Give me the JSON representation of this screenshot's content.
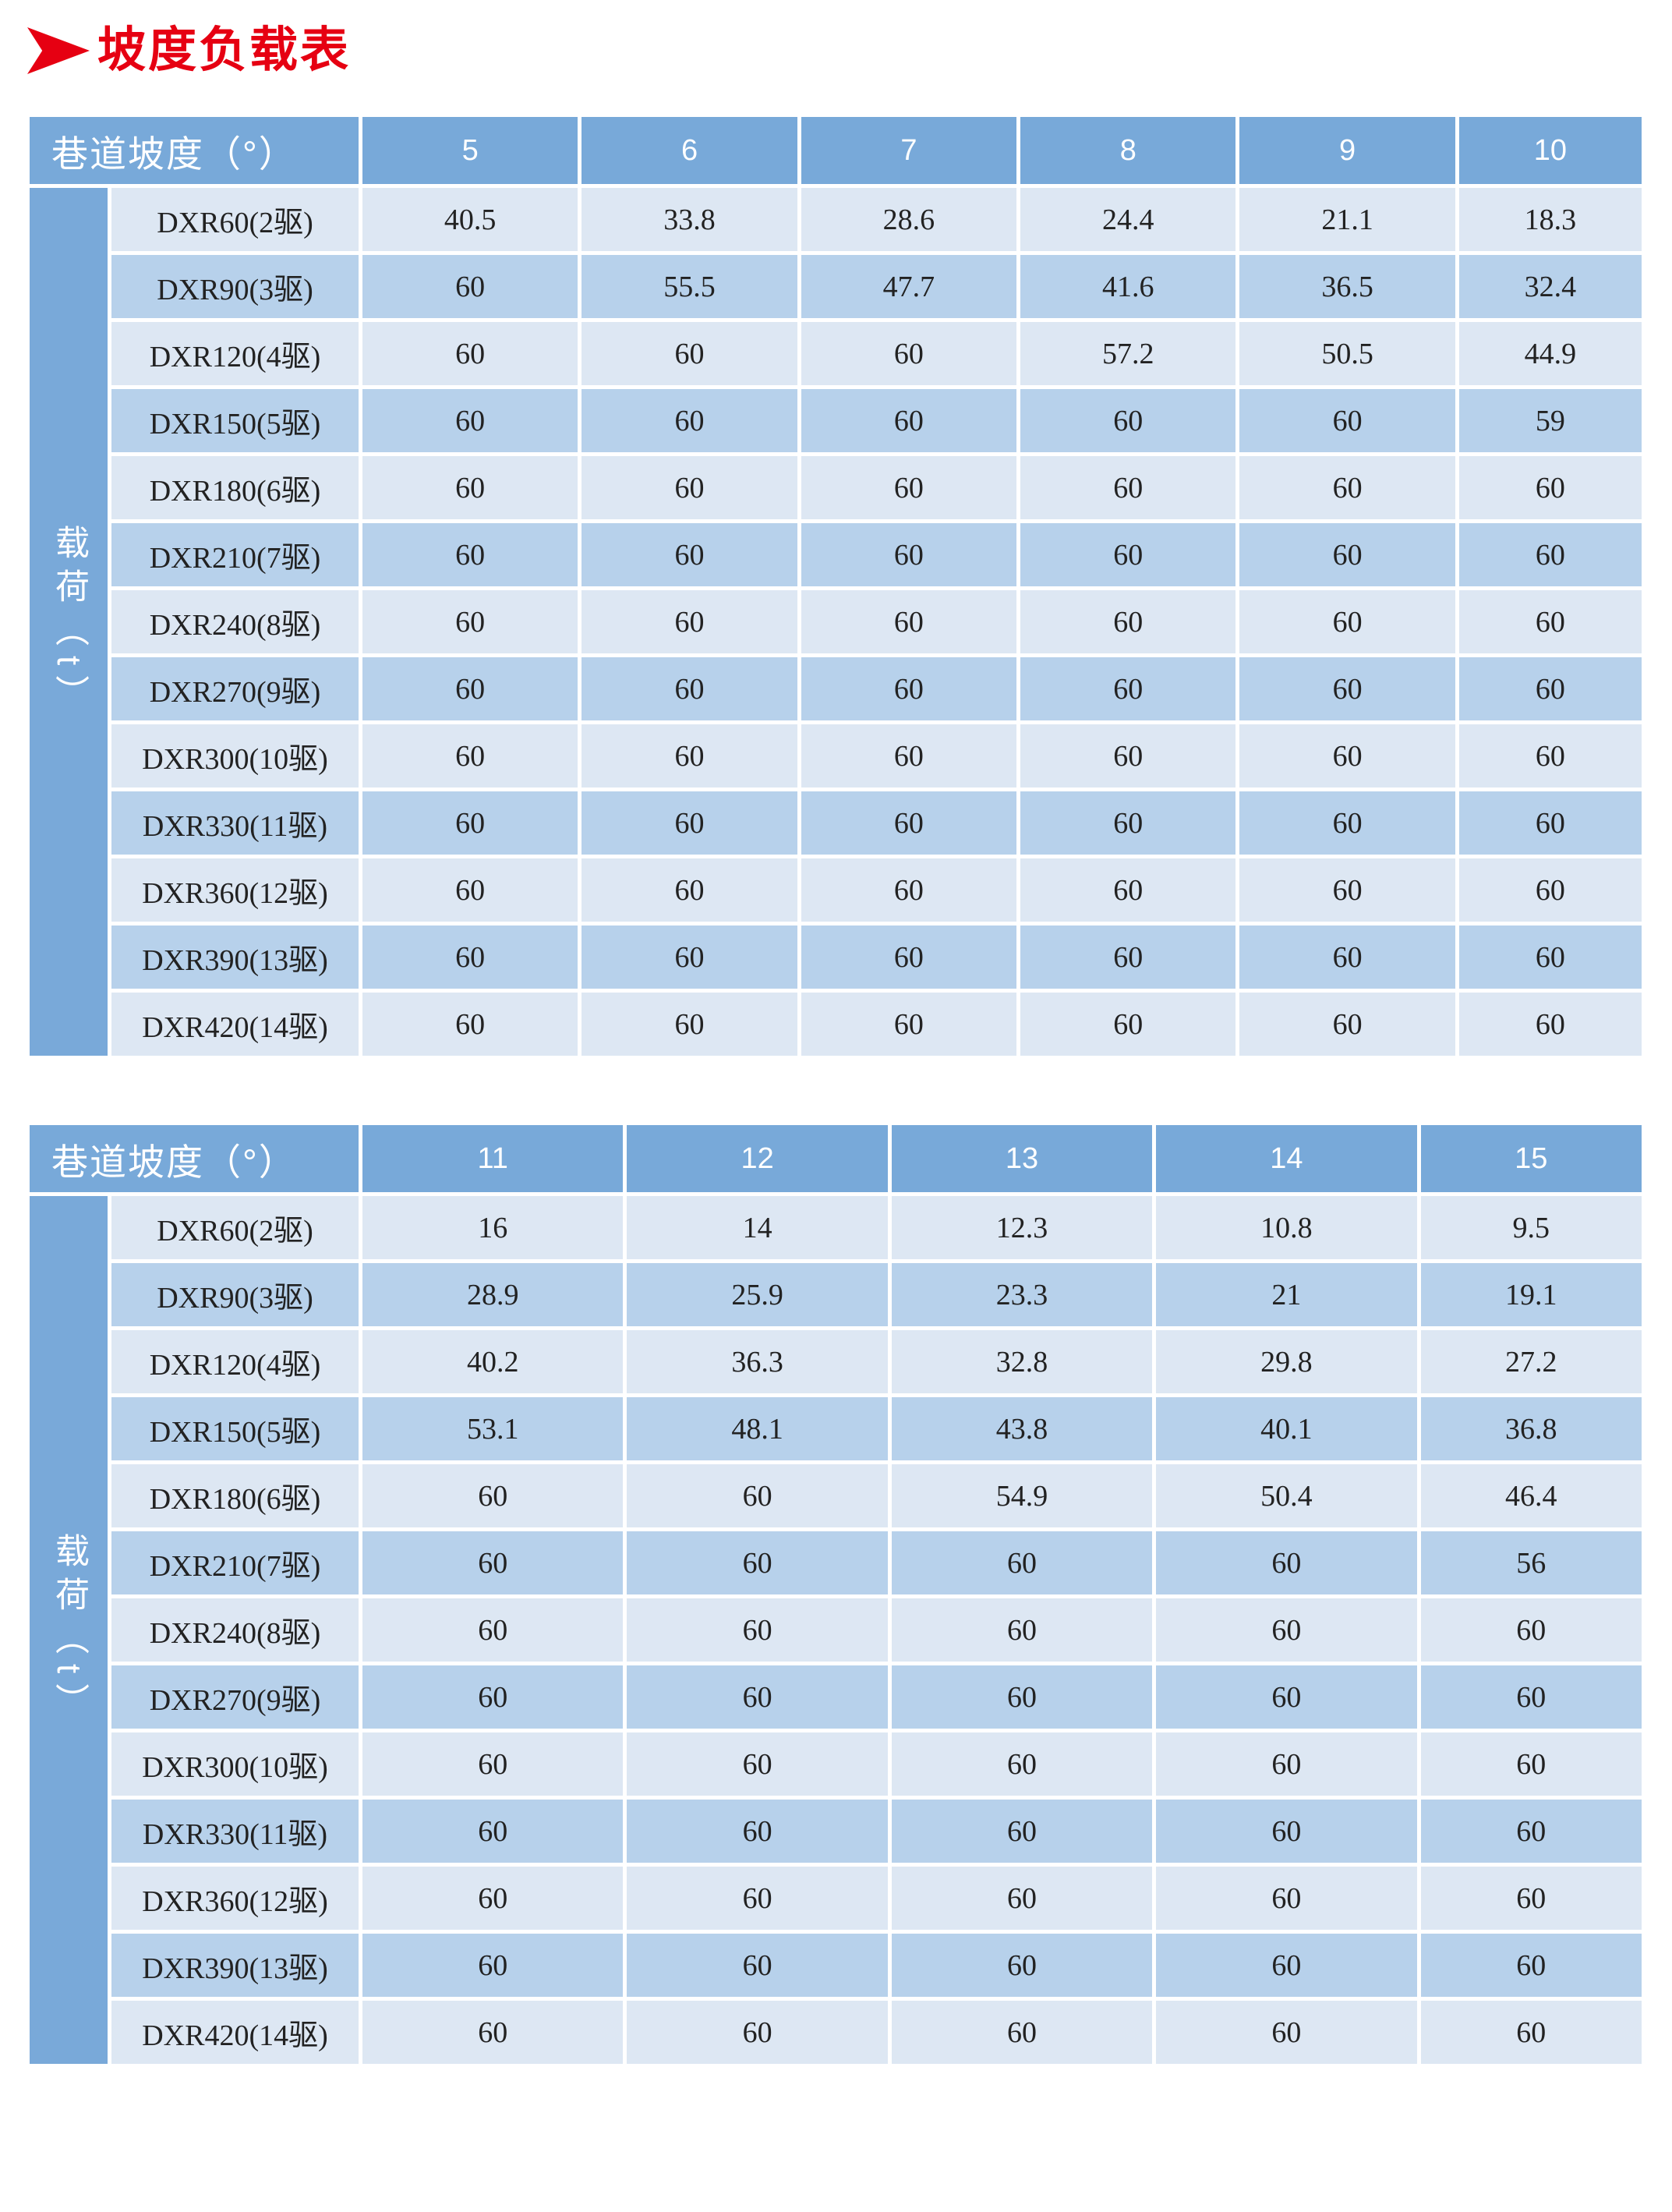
{
  "page": {
    "title": "坡度负载表"
  },
  "colors": {
    "accent_red": "#e60012",
    "header_blue": "#78a9d9",
    "band_blue": "#79a9d9",
    "row_light": "#dde7f3",
    "row_medium": "#b7d1eb",
    "cell_text": "#222222",
    "header_text": "#ffffff"
  },
  "icons": {
    "title_arrow": "red-arrowhead-right"
  },
  "tables": [
    {
      "corner_label": "巷道坡度（°）",
      "side_label": "载荷（t）",
      "columns": [
        "5",
        "6",
        "7",
        "8",
        "9",
        "10"
      ],
      "rows": [
        {
          "label": "DXR60(2驱)",
          "values": [
            "40.5",
            "33.8",
            "28.6",
            "24.4",
            "21.1",
            "18.3"
          ]
        },
        {
          "label": "DXR90(3驱)",
          "values": [
            "60",
            "55.5",
            "47.7",
            "41.6",
            "36.5",
            "32.4"
          ]
        },
        {
          "label": "DXR120(4驱)",
          "values": [
            "60",
            "60",
            "60",
            "57.2",
            "50.5",
            "44.9"
          ]
        },
        {
          "label": "DXR150(5驱)",
          "values": [
            "60",
            "60",
            "60",
            "60",
            "60",
            "59"
          ]
        },
        {
          "label": "DXR180(6驱)",
          "values": [
            "60",
            "60",
            "60",
            "60",
            "60",
            "60"
          ]
        },
        {
          "label": "DXR210(7驱)",
          "values": [
            "60",
            "60",
            "60",
            "60",
            "60",
            "60"
          ]
        },
        {
          "label": "DXR240(8驱)",
          "values": [
            "60",
            "60",
            "60",
            "60",
            "60",
            "60"
          ]
        },
        {
          "label": "DXR270(9驱)",
          "values": [
            "60",
            "60",
            "60",
            "60",
            "60",
            "60"
          ]
        },
        {
          "label": "DXR300(10驱)",
          "values": [
            "60",
            "60",
            "60",
            "60",
            "60",
            "60"
          ]
        },
        {
          "label": "DXR330(11驱)",
          "values": [
            "60",
            "60",
            "60",
            "60",
            "60",
            "60"
          ]
        },
        {
          "label": "DXR360(12驱)",
          "values": [
            "60",
            "60",
            "60",
            "60",
            "60",
            "60"
          ]
        },
        {
          "label": "DXR390(13驱)",
          "values": [
            "60",
            "60",
            "60",
            "60",
            "60",
            "60"
          ]
        },
        {
          "label": "DXR420(14驱)",
          "values": [
            "60",
            "60",
            "60",
            "60",
            "60",
            "60"
          ]
        }
      ]
    },
    {
      "corner_label": "巷道坡度（°）",
      "side_label": "载荷（t）",
      "columns": [
        "11",
        "12",
        "13",
        "14",
        "15"
      ],
      "rows": [
        {
          "label": "DXR60(2驱)",
          "values": [
            "16",
            "14",
            "12.3",
            "10.8",
            "9.5"
          ]
        },
        {
          "label": "DXR90(3驱)",
          "values": [
            "28.9",
            "25.9",
            "23.3",
            "21",
            "19.1"
          ]
        },
        {
          "label": "DXR120(4驱)",
          "values": [
            "40.2",
            "36.3",
            "32.8",
            "29.8",
            "27.2"
          ]
        },
        {
          "label": "DXR150(5驱)",
          "values": [
            "53.1",
            "48.1",
            "43.8",
            "40.1",
            "36.8"
          ]
        },
        {
          "label": "DXR180(6驱)",
          "values": [
            "60",
            "60",
            "54.9",
            "50.4",
            "46.4"
          ]
        },
        {
          "label": "DXR210(7驱)",
          "values": [
            "60",
            "60",
            "60",
            "60",
            "56"
          ]
        },
        {
          "label": "DXR240(8驱)",
          "values": [
            "60",
            "60",
            "60",
            "60",
            "60"
          ]
        },
        {
          "label": "DXR270(9驱)",
          "values": [
            "60",
            "60",
            "60",
            "60",
            "60"
          ]
        },
        {
          "label": "DXR300(10驱)",
          "values": [
            "60",
            "60",
            "60",
            "60",
            "60"
          ]
        },
        {
          "label": "DXR330(11驱)",
          "values": [
            "60",
            "60",
            "60",
            "60",
            "60"
          ]
        },
        {
          "label": "DXR360(12驱)",
          "values": [
            "60",
            "60",
            "60",
            "60",
            "60"
          ]
        },
        {
          "label": "DXR390(13驱)",
          "values": [
            "60",
            "60",
            "60",
            "60",
            "60"
          ]
        },
        {
          "label": "DXR420(14驱)",
          "values": [
            "60",
            "60",
            "60",
            "60",
            "60"
          ]
        }
      ]
    }
  ]
}
